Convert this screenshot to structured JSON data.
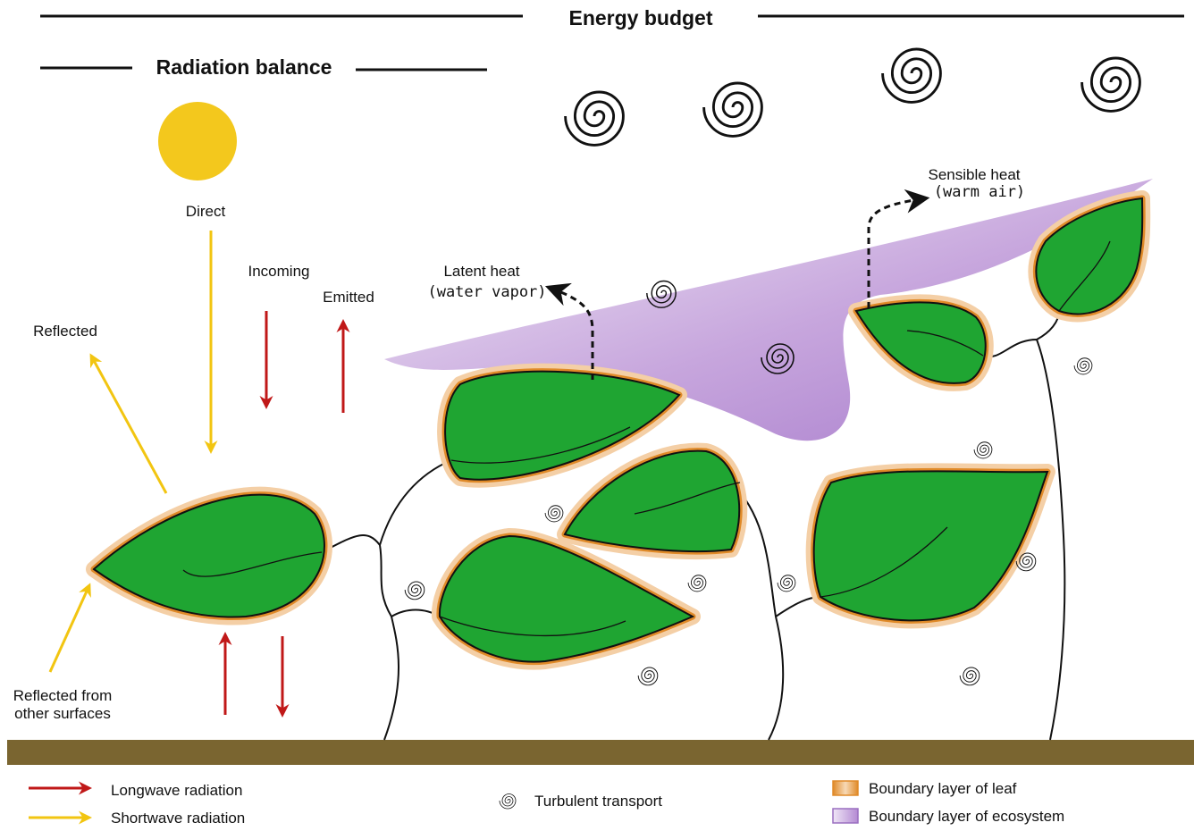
{
  "headings": {
    "energy_budget": "Energy budget",
    "radiation_balance": "Radiation balance"
  },
  "labels": {
    "direct": "Direct",
    "incoming": "Incoming",
    "emitted": "Emitted",
    "reflected": "Reflected",
    "reflected_other": [
      "Reflected from",
      "other surfaces"
    ],
    "latent_heat": [
      "Latent heat",
      "(water vapor)"
    ],
    "sensible_heat": [
      "Sensible heat",
      "(warm air)"
    ]
  },
  "legend": {
    "longwave": "Longwave radiation",
    "shortwave": "Shortwave radiation",
    "turbulent": "Turbulent transport",
    "leaf_layer": "Boundary layer of leaf",
    "ecosystem_layer": "Boundary layer of ecosystem"
  }
}
